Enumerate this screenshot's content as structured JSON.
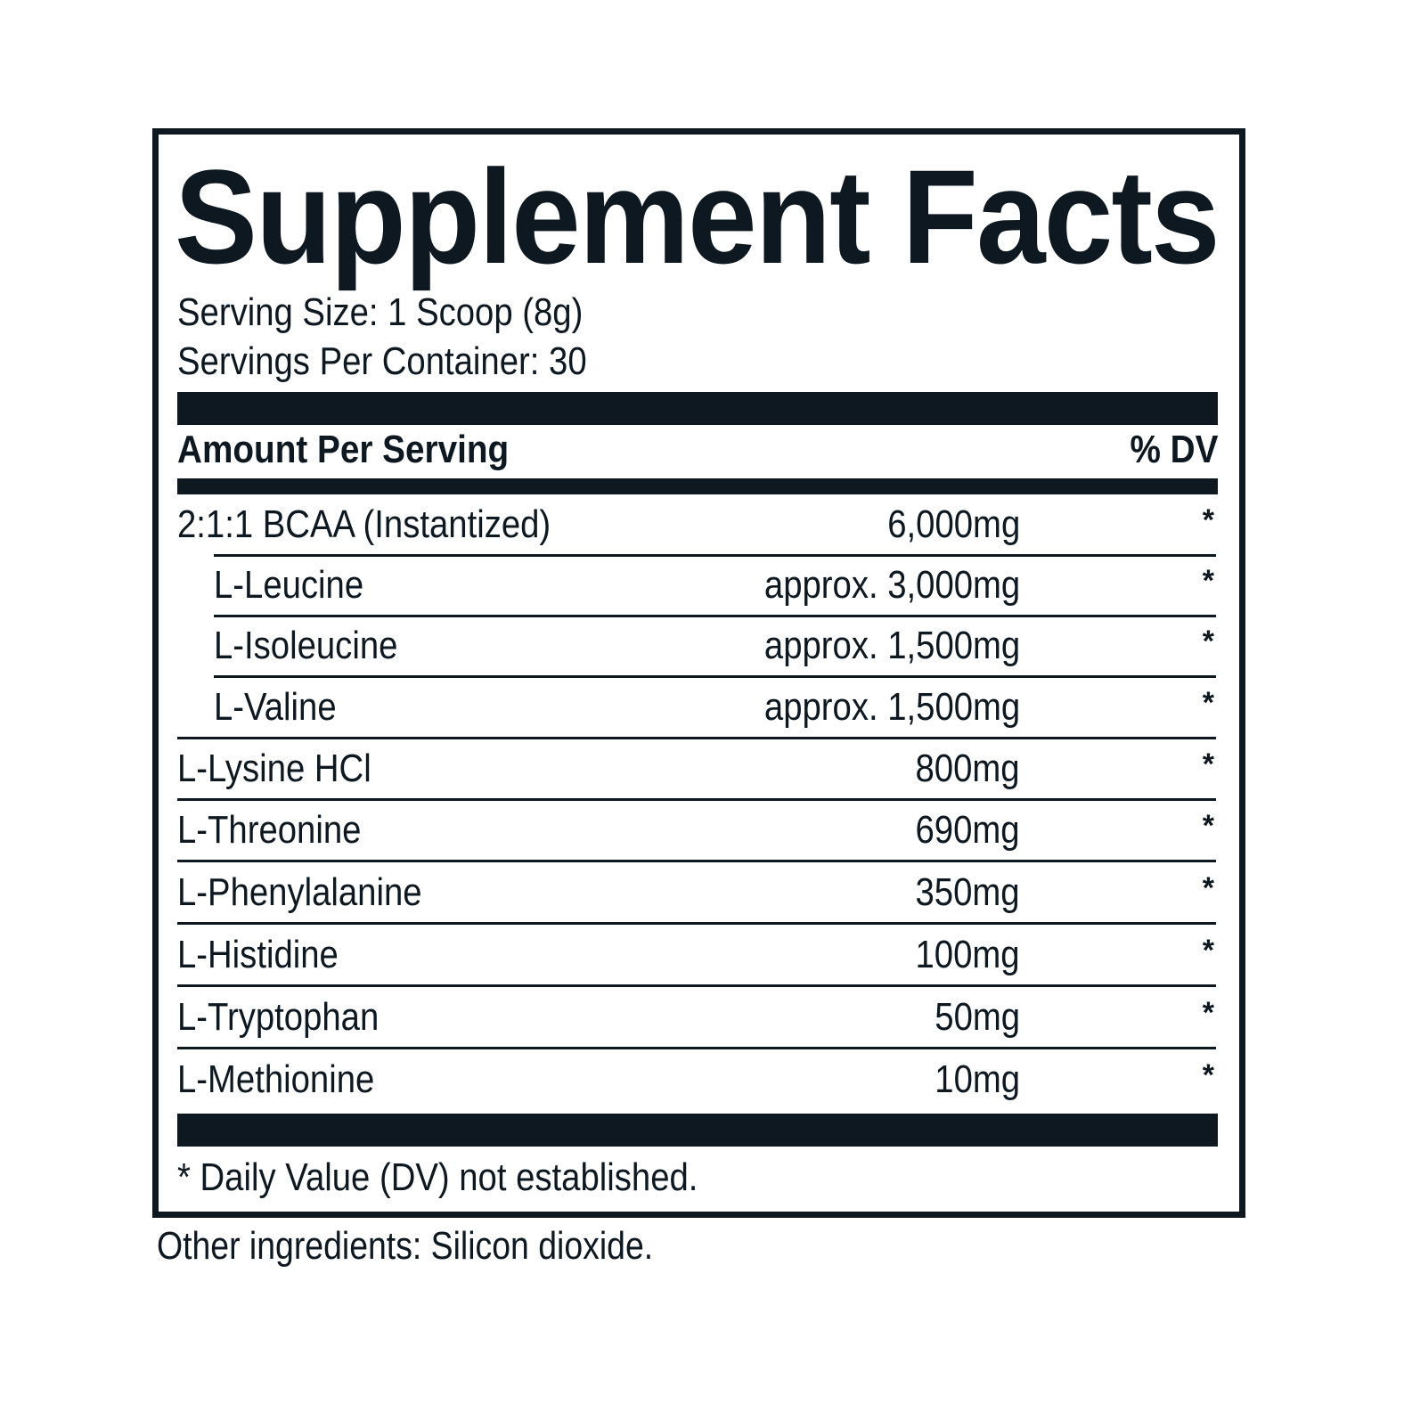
{
  "label": {
    "title": "Supplement Facts",
    "serving_size": "Serving Size: 1 Scoop (8g)",
    "servings_per_container": "Servings Per Container: 30",
    "header_left": "Amount Per Serving",
    "header_right": "% DV",
    "rows": [
      {
        "name": "2:1:1 BCAA (Instantized)",
        "amount": "6,000mg",
        "dv": "*",
        "indent": false
      },
      {
        "name": "L-Leucine",
        "amount": "approx. 3,000mg",
        "dv": "*",
        "indent": true
      },
      {
        "name": "L-Isoleucine",
        "amount": "approx. 1,500mg",
        "dv": "*",
        "indent": true
      },
      {
        "name": "L-Valine",
        "amount": "approx. 1,500mg",
        "dv": "*",
        "indent": true
      },
      {
        "name": "L-Lysine HCl",
        "amount": "800mg",
        "dv": "*",
        "indent": false
      },
      {
        "name": "L-Threonine",
        "amount": "690mg",
        "dv": "*",
        "indent": false
      },
      {
        "name": "L-Phenylalanine",
        "amount": "350mg",
        "dv": "*",
        "indent": false
      },
      {
        "name": "L-Histidine",
        "amount": "100mg",
        "dv": "*",
        "indent": false
      },
      {
        "name": "L-Tryptophan",
        "amount": "50mg",
        "dv": "*",
        "indent": false
      },
      {
        "name": "L-Methionine",
        "amount": "10mg",
        "dv": "*",
        "indent": false
      }
    ],
    "footnote": "* Daily Value (DV) not established.",
    "other_ingredients": "Other ingredients: Silicon dioxide."
  },
  "colors": {
    "ink": "#0e1821",
    "background": "#ffffff"
  }
}
